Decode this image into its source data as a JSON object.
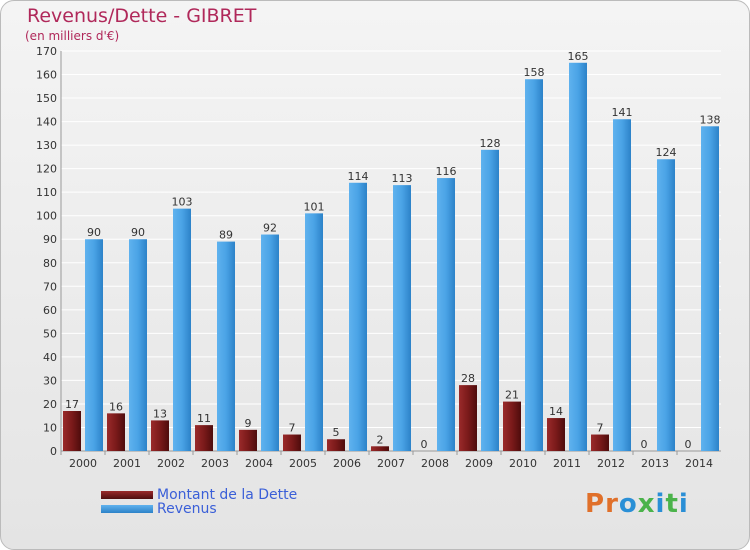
{
  "chart_data": {
    "type": "bar",
    "title": "Revenus/Dette - GIBRET",
    "subtitle": "(en milliers d'€)",
    "categories": [
      "2000",
      "2001",
      "2002",
      "2003",
      "2004",
      "2005",
      "2006",
      "2007",
      "2008",
      "2009",
      "2010",
      "2011",
      "2012",
      "2013",
      "2014"
    ],
    "series": [
      {
        "name": "Montant de la Dette",
        "color": "#7a1a1a",
        "values": [
          17,
          16,
          13,
          11,
          9,
          7,
          5,
          2,
          0,
          28,
          21,
          14,
          7,
          0,
          0
        ]
      },
      {
        "name": "Revenus",
        "color": "#4aa3e6",
        "values": [
          90,
          90,
          103,
          89,
          92,
          101,
          114,
          113,
          116,
          128,
          158,
          165,
          141,
          124,
          138
        ]
      }
    ],
    "ylim": [
      0,
      170
    ],
    "ytick_step": 10,
    "grid": true,
    "legend_position": "bottom-left"
  },
  "logo": {
    "text": "Proxiti",
    "colors": [
      "#e0702a",
      "#2a8fd6",
      "#4bb34b"
    ]
  }
}
